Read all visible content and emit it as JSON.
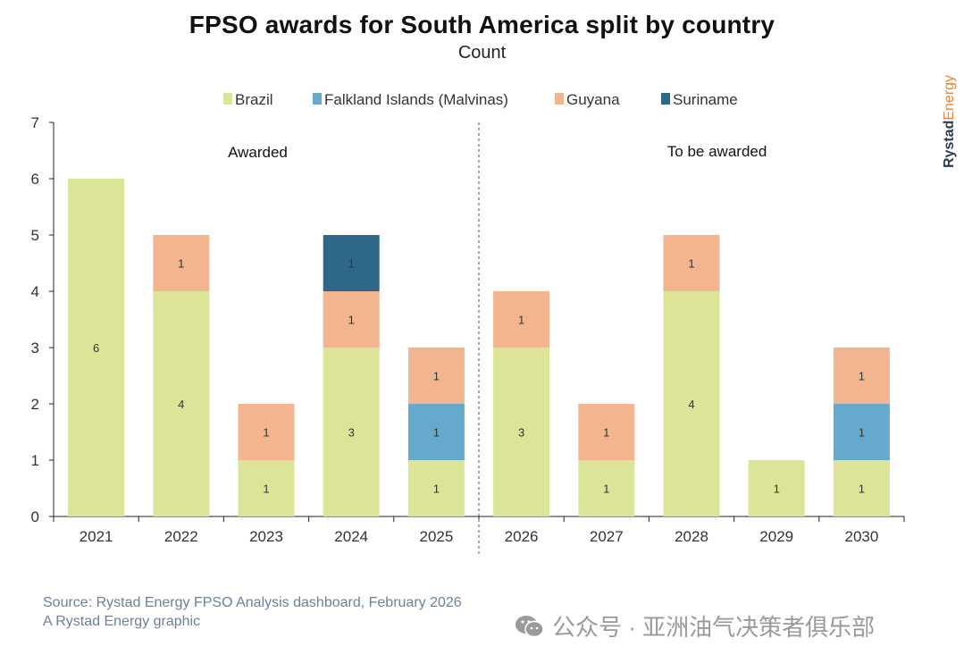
{
  "header": {
    "title": "FPSO awards for South America split by country",
    "subtitle": "Count"
  },
  "chart_data": {
    "type": "bar",
    "stacked": true,
    "categories": [
      "2021",
      "2022",
      "2023",
      "2024",
      "2025",
      "2026",
      "2027",
      "2028",
      "2029",
      "2030"
    ],
    "series": [
      {
        "name": "Brazil",
        "color": "#dce597",
        "values": [
          6,
          4,
          1,
          3,
          1,
          3,
          1,
          4,
          1,
          1
        ]
      },
      {
        "name": "Falkland Islands (Malvinas)",
        "color": "#65a9cc",
        "values": [
          0,
          0,
          0,
          0,
          1,
          0,
          0,
          0,
          0,
          1
        ]
      },
      {
        "name": "Guyana",
        "color": "#f2b58f",
        "values": [
          0,
          1,
          1,
          1,
          1,
          1,
          1,
          1,
          0,
          1
        ]
      },
      {
        "name": "Suriname",
        "color": "#2e6788",
        "values": [
          0,
          0,
          0,
          1,
          0,
          0,
          0,
          0,
          0,
          0
        ]
      }
    ],
    "ylim": [
      0,
      7
    ],
    "yticks": [
      0,
      1,
      2,
      3,
      4,
      5,
      6,
      7
    ],
    "legend_position": "top",
    "grid": false,
    "annotations": [
      "Awarded",
      "To be awarded"
    ],
    "divider_after_category": "2025"
  },
  "source": {
    "line1": "Source: Rystad Energy FPSO Analysis dashboard, February 2026",
    "line2": "A Rystad Energy graphic"
  },
  "brand": {
    "part1": "Rystad",
    "part2": "Energy",
    "color1": "#2b3a55",
    "color2": "#e8843b"
  },
  "watermark": {
    "text": "公众号 · 亚洲油气决策者俱乐部",
    "icon": "wechat-icon"
  }
}
